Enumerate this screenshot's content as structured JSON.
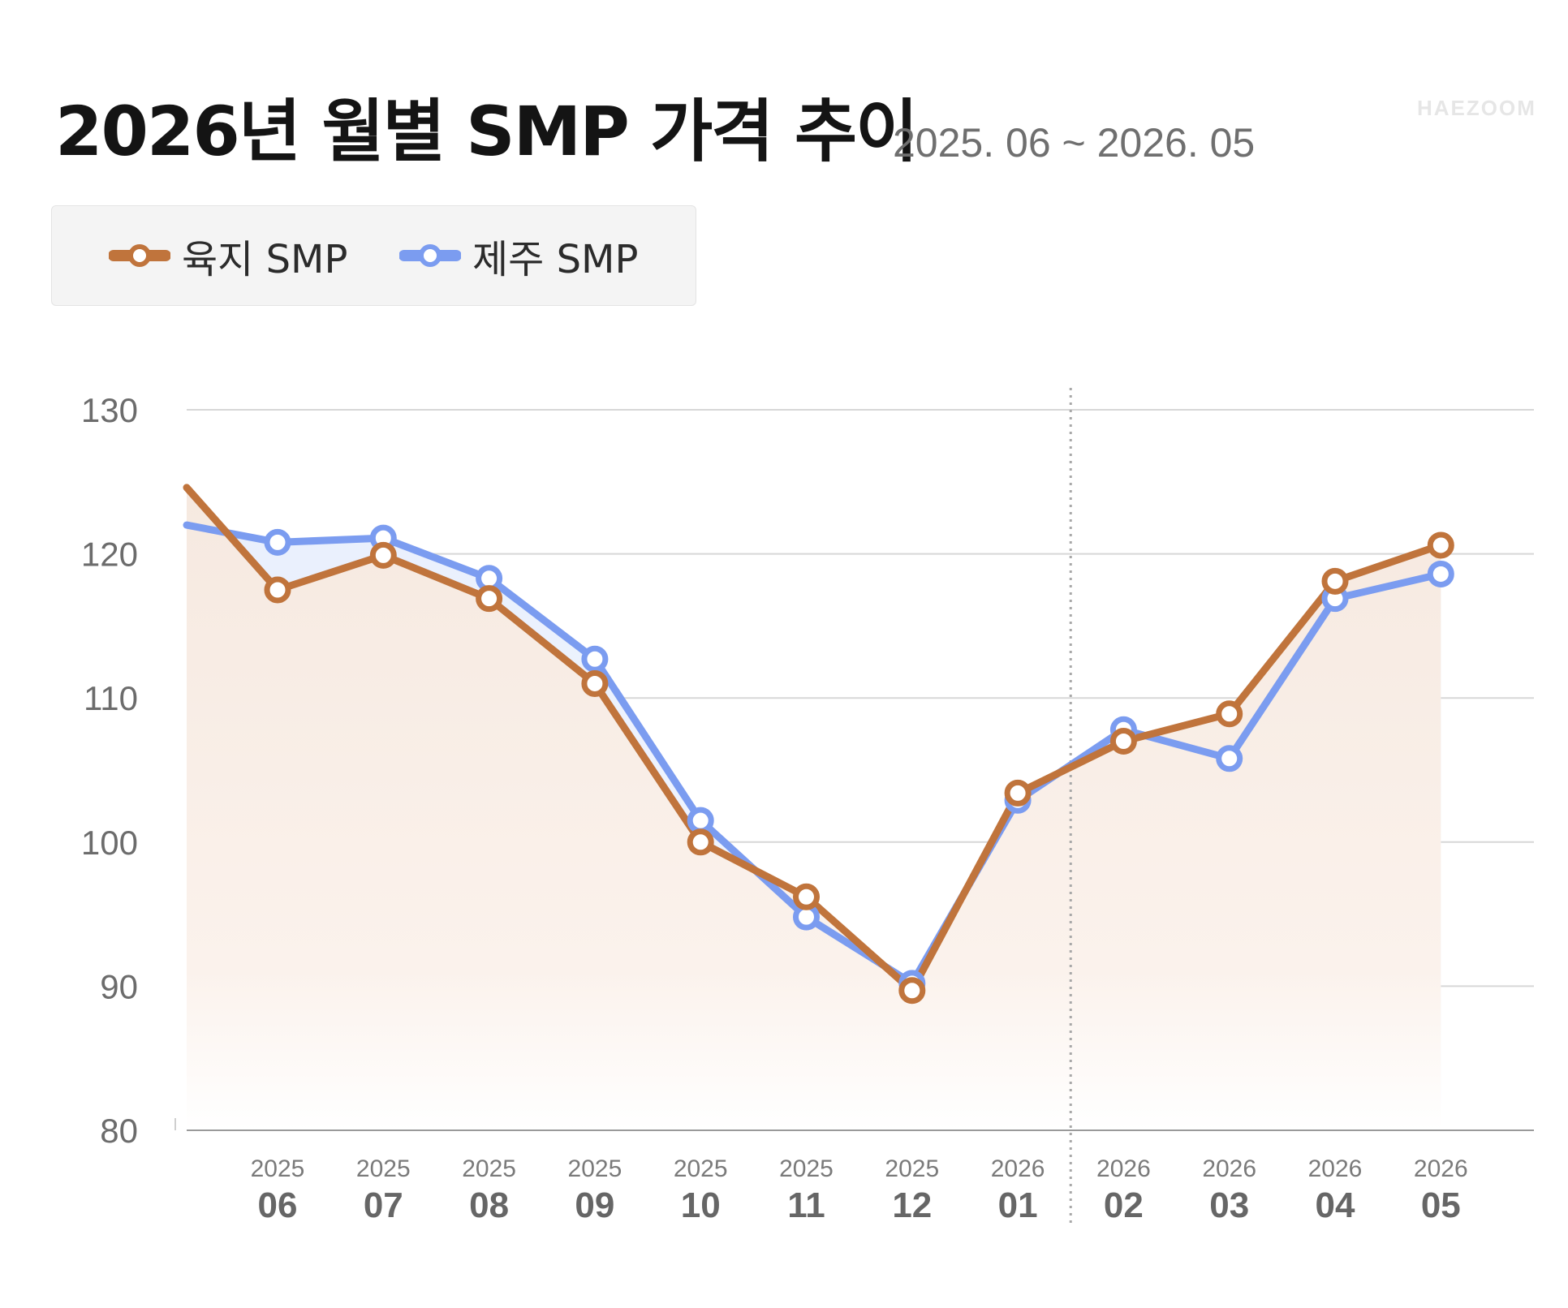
{
  "header": {
    "title": "2026년 월별 SMP 가격 추이",
    "period": "2025. 06 ~ 2026. 05",
    "brand": "HAEZOOM"
  },
  "legend": [
    {
      "label": "육지 SMP",
      "color": "#c0743c"
    },
    {
      "label": "제주 SMP",
      "color": "#7b9cf0"
    }
  ],
  "chart_data": {
    "type": "line",
    "title": "2026년 월별 SMP 가격 추이",
    "subtitle": "2025. 06 ~ 2026. 05",
    "categories": [
      {
        "year": "2025",
        "month": "06"
      },
      {
        "year": "2025",
        "month": "07"
      },
      {
        "year": "2025",
        "month": "08"
      },
      {
        "year": "2025",
        "month": "09"
      },
      {
        "year": "2025",
        "month": "10"
      },
      {
        "year": "2025",
        "month": "11"
      },
      {
        "year": "2025",
        "month": "12"
      },
      {
        "year": "2026",
        "month": "01"
      },
      {
        "year": "2026",
        "month": "02"
      },
      {
        "year": "2026",
        "month": "03"
      },
      {
        "year": "2026",
        "month": "04"
      },
      {
        "year": "2026",
        "month": "05"
      }
    ],
    "series": [
      {
        "name": "육지 SMP",
        "color": "#c0743c",
        "lead_in": 124.6,
        "values": [
          117.5,
          119.9,
          116.9,
          111.0,
          100.0,
          96.2,
          89.7,
          103.4,
          107.0,
          108.9,
          118.1,
          120.6
        ]
      },
      {
        "name": "제주 SMP",
        "color": "#7b9cf0",
        "lead_in": 122.0,
        "values": [
          120.8,
          121.1,
          118.3,
          112.7,
          101.5,
          94.8,
          90.2,
          102.9,
          107.8,
          105.8,
          116.9,
          118.6
        ]
      }
    ],
    "yticks": [
      80,
      90,
      100,
      110,
      120,
      130
    ],
    "ylim": [
      80,
      130
    ],
    "grid": true,
    "divider_between": [
      "01",
      "02"
    ]
  }
}
